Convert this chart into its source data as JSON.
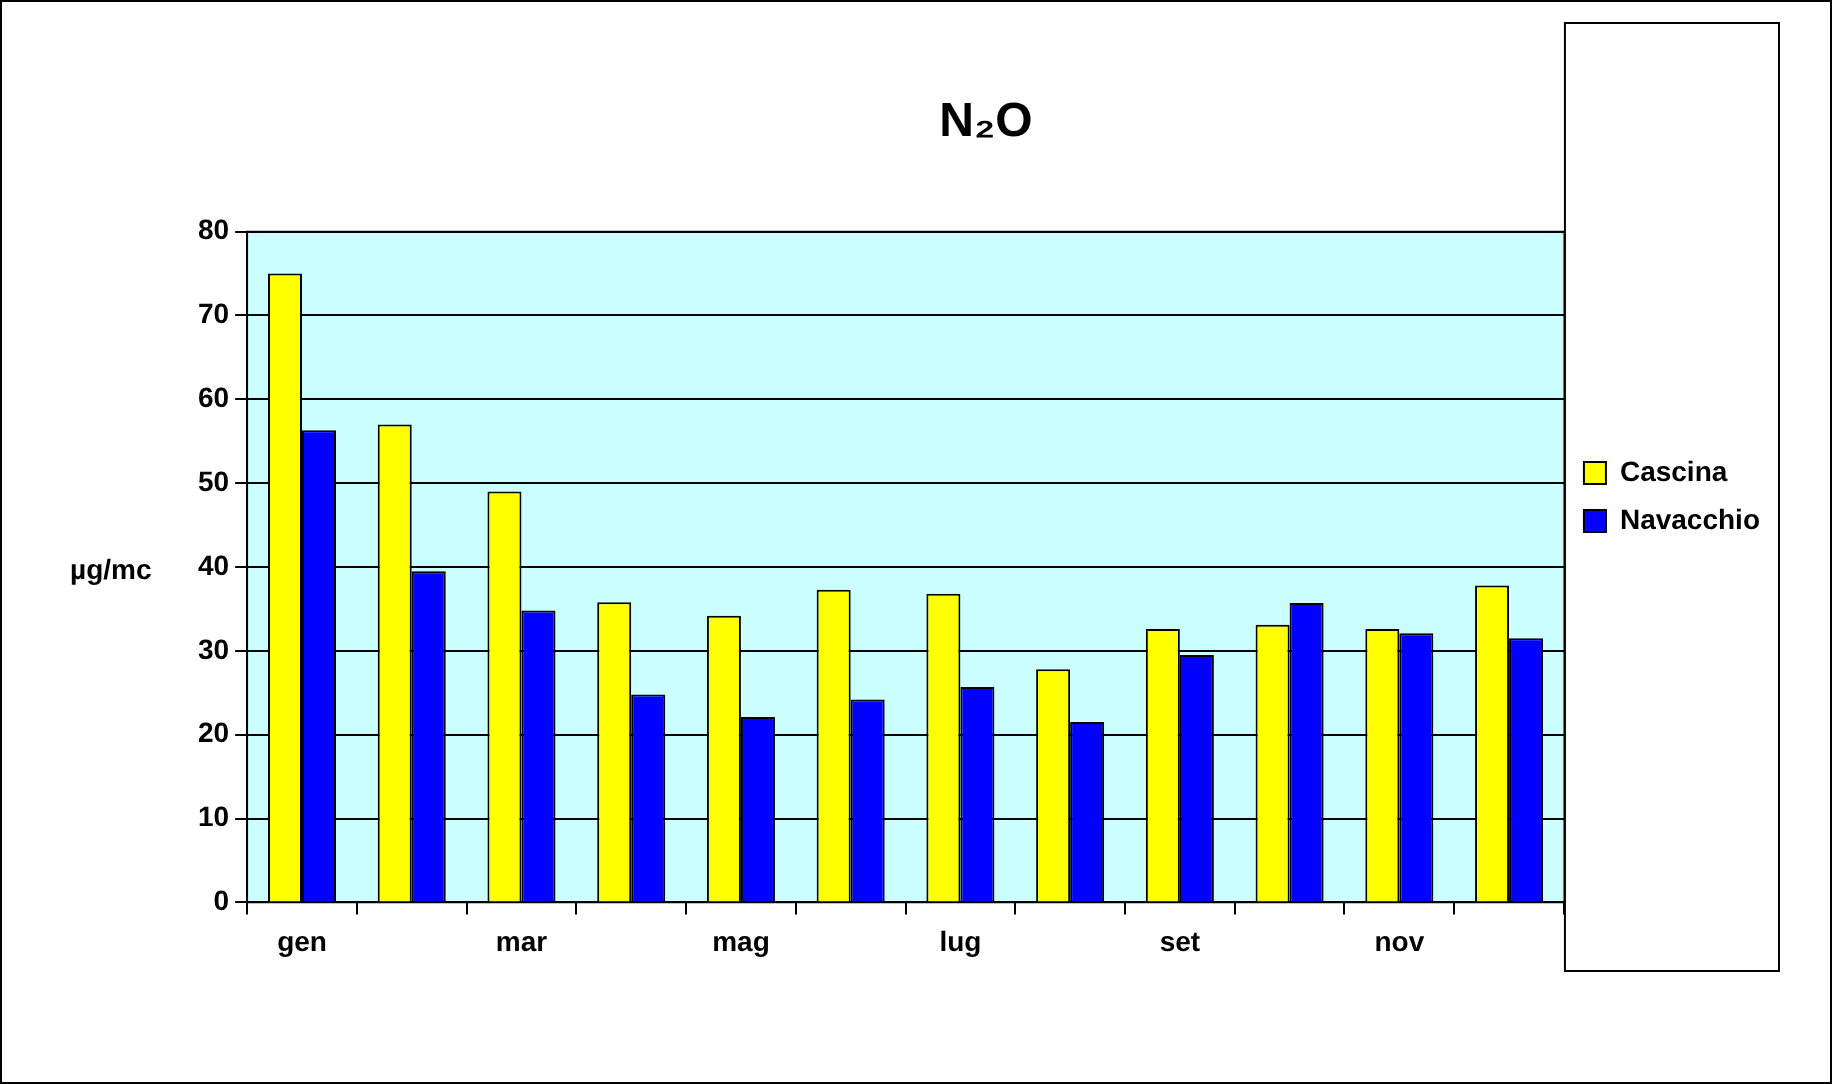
{
  "chart_data": {
    "type": "bar",
    "title": "N₂O",
    "ylabel": "µg/mc",
    "categories": [
      "gen",
      null,
      "mar",
      null,
      "mag",
      null,
      "lug",
      null,
      "set",
      null,
      "nov",
      null
    ],
    "series": [
      {
        "name": "Cascina",
        "color": "#ffff00",
        "values": [
          75,
          57,
          49,
          35.8,
          34.2,
          37.3,
          36.8,
          27.8,
          32.6,
          33.1,
          32.6,
          37.8
        ]
      },
      {
        "name": "Navacchio",
        "color": "#0000ff",
        "values": [
          56.3,
          39.5,
          34.8,
          24.8,
          22.1,
          24.2,
          25.7,
          21.5,
          29.5,
          35.7,
          32.1,
          31.5
        ]
      }
    ],
    "ylim": [
      0,
      80
    ],
    "yticks": [
      0,
      10,
      20,
      30,
      40,
      50,
      60,
      70,
      80
    ],
    "grid": "y",
    "legend": "right"
  }
}
